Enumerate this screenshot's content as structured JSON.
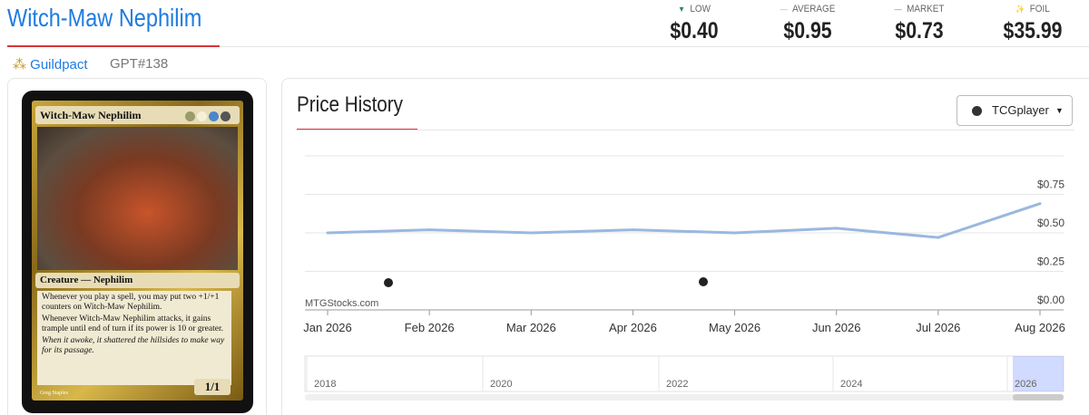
{
  "header": {
    "title": "Witch-Maw Nephilim",
    "set": "Guildpact",
    "number": "GPT#138"
  },
  "prices": [
    {
      "label": "LOW",
      "value": "$0.40"
    },
    {
      "label": "AVERAGE",
      "value": "$0.95"
    },
    {
      "label": "MARKET",
      "value": "$0.73"
    },
    {
      "label": "FOIL",
      "value": "$35.99"
    }
  ],
  "card": {
    "name": "Witch-Maw Nephilim",
    "type_line": "Creature — Nephilim",
    "rules": [
      "Whenever you play a spell, you may put two +1/+1 counters on Witch-Maw Nephilim.",
      "Whenever Witch-Maw Nephilim attacks, it gains trample until end of turn if its power is 10 or greater."
    ],
    "flavor": "When it awoke, it shattered the hillsides to make way for its passage.",
    "power_toughness": "1/1",
    "artist": "Greg Staples"
  },
  "chart_data": {
    "type": "line",
    "title": "Price History",
    "source": "TCGplayer",
    "watermark": "MTGStocks.com",
    "categories": [
      "Jan 2026",
      "Feb 2026",
      "Mar 2026",
      "Apr 2026",
      "May 2026",
      "Jun 2026",
      "Jul 2026",
      "Aug 2026"
    ],
    "values": [
      0.5,
      0.52,
      0.5,
      0.52,
      0.5,
      0.53,
      0.47,
      0.69
    ],
    "color": "#9ab8df",
    "ylim": [
      0,
      1
    ],
    "yticks": [
      {
        "value": 0,
        "label": "$0.00"
      },
      {
        "value": 0.25,
        "label": "$0.25"
      },
      {
        "value": 0.5,
        "label": "$0.50"
      },
      {
        "value": 0.75,
        "label": "$0.75"
      }
    ],
    "grid": true,
    "navigator": {
      "labels": [
        "2018",
        "2020",
        "2022",
        "2024",
        "2026"
      ]
    }
  }
}
